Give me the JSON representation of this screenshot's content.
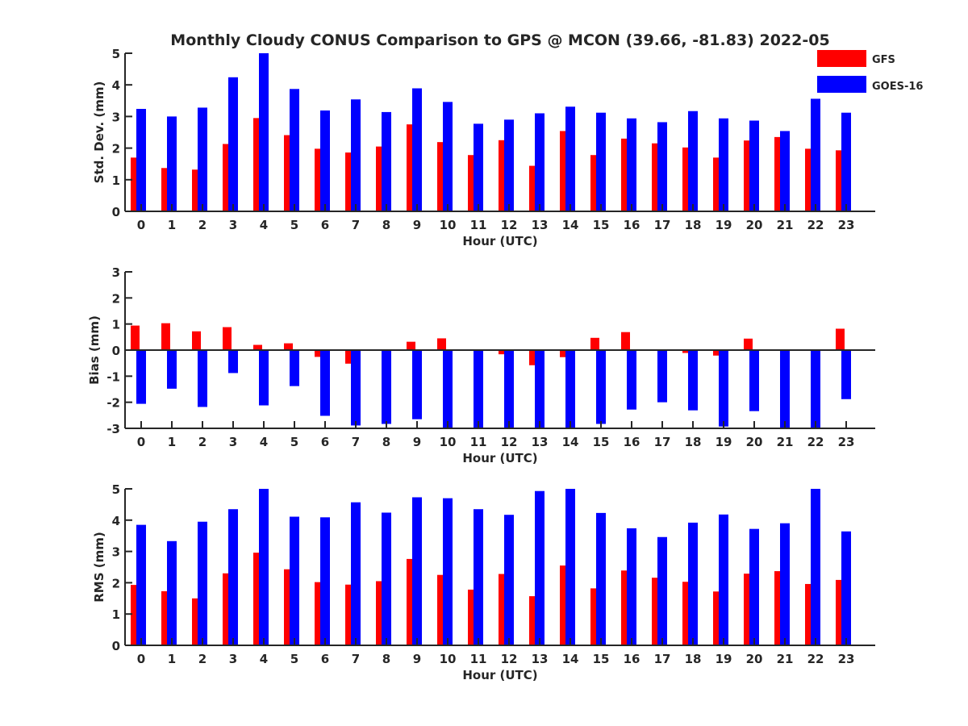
{
  "chart_data": [
    {
      "type": "bar",
      "title": "Monthly Cloudy CONUS Comparison to GPS @ MCON (39.66, -81.83) 2022-05",
      "xlabel": "Hour (UTC)",
      "ylabel": "Std. Dev. (mm)",
      "ylim": [
        0,
        5
      ],
      "yticks": [
        0,
        1,
        2,
        3,
        4,
        5
      ],
      "categories": [
        "0",
        "1",
        "2",
        "3",
        "4",
        "5",
        "6",
        "7",
        "8",
        "9",
        "10",
        "11",
        "12",
        "13",
        "14",
        "15",
        "16",
        "17",
        "18",
        "19",
        "20",
        "21",
        "22",
        "23"
      ],
      "series": [
        {
          "name": "GFS",
          "color": "#ff0000",
          "values": [
            1.7,
            1.37,
            1.32,
            2.13,
            2.95,
            2.41,
            1.98,
            1.86,
            2.05,
            2.75,
            2.19,
            1.78,
            2.25,
            1.44,
            2.54,
            1.78,
            2.3,
            2.15,
            2.02,
            1.7,
            2.24,
            2.35,
            1.98,
            1.93
          ]
        },
        {
          "name": "GOES-16",
          "color": "#0000ff",
          "values": [
            3.24,
            3.0,
            3.28,
            4.24,
            5.0,
            3.87,
            3.19,
            3.54,
            3.14,
            3.89,
            3.46,
            2.77,
            2.9,
            3.1,
            3.31,
            3.12,
            2.94,
            2.82,
            3.17,
            2.94,
            2.87,
            2.54,
            3.56,
            3.12
          ]
        }
      ],
      "legend": {
        "position": "top-right",
        "entries": [
          "GFS",
          "GOES-16"
        ]
      }
    },
    {
      "type": "bar",
      "xlabel": "Hour (UTC)",
      "ylabel": "Bias (mm)",
      "ylim": [
        -3,
        3
      ],
      "yticks": [
        -3,
        -2,
        -1,
        0,
        1,
        2,
        3
      ],
      "categories": [
        "0",
        "1",
        "2",
        "3",
        "4",
        "5",
        "6",
        "7",
        "8",
        "9",
        "10",
        "11",
        "12",
        "13",
        "14",
        "15",
        "16",
        "17",
        "18",
        "19",
        "20",
        "21",
        "22",
        "23"
      ],
      "series": [
        {
          "name": "GFS",
          "color": "#ff0000",
          "values": [
            0.94,
            1.03,
            0.72,
            0.88,
            0.2,
            0.26,
            -0.26,
            -0.52,
            0.0,
            0.32,
            0.45,
            0.0,
            -0.16,
            -0.58,
            -0.27,
            0.47,
            0.69,
            0.02,
            -0.11,
            -0.21,
            0.44,
            0.0,
            0.03,
            0.82
          ]
        },
        {
          "name": "GOES-16",
          "color": "#0000ff",
          "values": [
            -2.06,
            -1.48,
            -2.18,
            -0.88,
            -2.12,
            -1.38,
            -2.52,
            -2.89,
            -2.83,
            -2.65,
            -3.0,
            -3.0,
            -3.0,
            -3.0,
            -3.0,
            -2.83,
            -2.28,
            -2.0,
            -2.31,
            -2.93,
            -2.34,
            -2.97,
            -3.0,
            -1.88
          ]
        }
      ]
    },
    {
      "type": "bar",
      "xlabel": "Hour (UTC)",
      "ylabel": "RMS (mm)",
      "ylim": [
        0,
        5
      ],
      "yticks": [
        0,
        1,
        2,
        3,
        4,
        5
      ],
      "categories": [
        "0",
        "1",
        "2",
        "3",
        "4",
        "5",
        "6",
        "7",
        "8",
        "9",
        "10",
        "11",
        "12",
        "13",
        "14",
        "15",
        "16",
        "17",
        "18",
        "19",
        "20",
        "21",
        "22",
        "23"
      ],
      "series": [
        {
          "name": "GFS",
          "color": "#ff0000",
          "values": [
            1.93,
            1.73,
            1.5,
            2.3,
            2.96,
            2.43,
            2.02,
            1.94,
            2.05,
            2.76,
            2.25,
            1.78,
            2.28,
            1.57,
            2.55,
            1.82,
            2.39,
            2.16,
            2.03,
            1.72,
            2.29,
            2.37,
            1.96,
            2.09
          ]
        },
        {
          "name": "GOES-16",
          "color": "#0000ff",
          "values": [
            3.85,
            3.33,
            3.95,
            4.35,
            5.0,
            4.11,
            4.09,
            4.57,
            4.24,
            4.73,
            4.7,
            4.35,
            4.17,
            4.93,
            5.0,
            4.23,
            3.74,
            3.46,
            3.92,
            4.18,
            3.72,
            3.9,
            5.0,
            3.64
          ]
        }
      ]
    }
  ]
}
